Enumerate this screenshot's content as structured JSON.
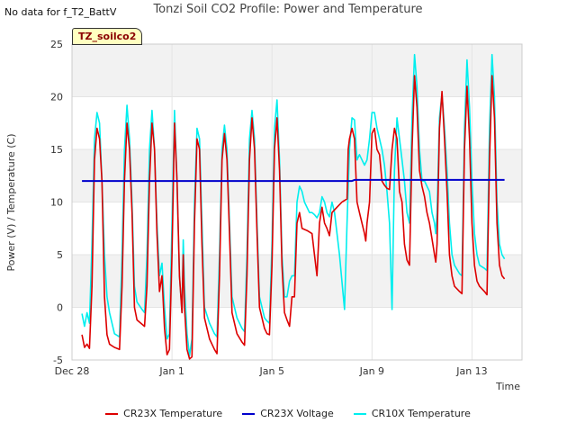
{
  "nodata_text": "No data for f_T2_BattV",
  "site_label": "TZ_soilco2",
  "colors": {
    "cr23x_temp": "#dd0000",
    "cr23x_voltage": "#0000cc",
    "cr10x_temp": "#00eeee",
    "band": "#f2f2f2",
    "grid": "#ffffff"
  },
  "chart_data": {
    "type": "line",
    "title": "Tonzi Soil CO2 Profile: Power and Temperature",
    "xlabel": "Time",
    "ylabel": "Power (V) / Temperature (C)",
    "xlim": [
      0,
      18
    ],
    "ylim": [
      -5,
      25
    ],
    "x_unit": "days since Dec 28",
    "xticks": [
      {
        "value": 0,
        "label": "Dec 28"
      },
      {
        "value": 4,
        "label": "Jan 1"
      },
      {
        "value": 8,
        "label": "Jan 5"
      },
      {
        "value": 12,
        "label": "Jan 9"
      },
      {
        "value": 16,
        "label": "Jan 13"
      }
    ],
    "yticks": [
      -5,
      0,
      5,
      10,
      15,
      20,
      25
    ],
    "series": [
      {
        "name": "CR23X Temperature",
        "key": "cr23x_temp",
        "points": [
          [
            0.4,
            -2.6
          ],
          [
            0.5,
            -3.8
          ],
          [
            0.6,
            -3.5
          ],
          [
            0.7,
            -3.9
          ],
          [
            0.8,
            2
          ],
          [
            0.9,
            14
          ],
          [
            1.0,
            17
          ],
          [
            1.1,
            16
          ],
          [
            1.2,
            12
          ],
          [
            1.3,
            1
          ],
          [
            1.4,
            -2.6
          ],
          [
            1.5,
            -3.5
          ],
          [
            1.7,
            -3.8
          ],
          [
            1.9,
            -4
          ],
          [
            2.0,
            2
          ],
          [
            2.1,
            12
          ],
          [
            2.2,
            17.5
          ],
          [
            2.3,
            15
          ],
          [
            2.4,
            9
          ],
          [
            2.5,
            0
          ],
          [
            2.6,
            -1.2
          ],
          [
            2.8,
            -1.6
          ],
          [
            2.9,
            -1.8
          ],
          [
            3.0,
            2
          ],
          [
            3.1,
            12
          ],
          [
            3.2,
            17.5
          ],
          [
            3.3,
            15
          ],
          [
            3.4,
            7
          ],
          [
            3.5,
            1.5
          ],
          [
            3.6,
            3
          ],
          [
            3.7,
            -2
          ],
          [
            3.8,
            -4.5
          ],
          [
            3.9,
            -4
          ],
          [
            4.0,
            5
          ],
          [
            4.1,
            17.5
          ],
          [
            4.2,
            12
          ],
          [
            4.3,
            3
          ],
          [
            4.4,
            -0.5
          ],
          [
            4.45,
            5
          ],
          [
            4.5,
            0
          ],
          [
            4.6,
            -4
          ],
          [
            4.7,
            -4.9
          ],
          [
            4.8,
            -4.7
          ],
          [
            4.9,
            8
          ],
          [
            5.0,
            16
          ],
          [
            5.1,
            15
          ],
          [
            5.2,
            6
          ],
          [
            5.3,
            -1
          ],
          [
            5.5,
            -3
          ],
          [
            5.7,
            -4
          ],
          [
            5.8,
            -4.4
          ],
          [
            5.9,
            3
          ],
          [
            6.0,
            14
          ],
          [
            6.1,
            16.5
          ],
          [
            6.2,
            14
          ],
          [
            6.3,
            7
          ],
          [
            6.4,
            -0.5
          ],
          [
            6.6,
            -2.5
          ],
          [
            6.8,
            -3.3
          ],
          [
            6.9,
            -3.6
          ],
          [
            7.0,
            3
          ],
          [
            7.1,
            14
          ],
          [
            7.2,
            18
          ],
          [
            7.3,
            15
          ],
          [
            7.4,
            7
          ],
          [
            7.5,
            0
          ],
          [
            7.7,
            -2
          ],
          [
            7.8,
            -2.5
          ],
          [
            7.9,
            -2.6
          ],
          [
            8.0,
            4
          ],
          [
            8.1,
            15
          ],
          [
            8.2,
            18
          ],
          [
            8.3,
            13
          ],
          [
            8.4,
            4
          ],
          [
            8.5,
            -0.5
          ],
          [
            8.6,
            -1.2
          ],
          [
            8.7,
            -1.8
          ],
          [
            8.8,
            1
          ],
          [
            8.9,
            1
          ],
          [
            9.0,
            8
          ],
          [
            9.1,
            9
          ],
          [
            9.2,
            7.5
          ],
          [
            9.4,
            7.3
          ],
          [
            9.6,
            7
          ],
          [
            9.7,
            5
          ],
          [
            9.8,
            3
          ],
          [
            9.9,
            8
          ],
          [
            10.0,
            9.5
          ],
          [
            10.1,
            8
          ],
          [
            10.2,
            7.5
          ],
          [
            10.3,
            6.8
          ],
          [
            10.4,
            9
          ],
          [
            10.6,
            9.5
          ],
          [
            10.8,
            10
          ],
          [
            11.0,
            10.3
          ],
          [
            11.05,
            15
          ],
          [
            11.1,
            16
          ],
          [
            11.2,
            17
          ],
          [
            11.3,
            16
          ],
          [
            11.4,
            10
          ],
          [
            11.5,
            9
          ],
          [
            11.6,
            8
          ],
          [
            11.7,
            7
          ],
          [
            11.75,
            6.3
          ],
          [
            11.8,
            8
          ],
          [
            11.9,
            10
          ],
          [
            12.0,
            16.5
          ],
          [
            12.1,
            17
          ],
          [
            12.2,
            15
          ],
          [
            12.3,
            14.5
          ],
          [
            12.4,
            12
          ],
          [
            12.5,
            11.6
          ],
          [
            12.6,
            11.3
          ],
          [
            12.7,
            11.2
          ],
          [
            12.8,
            15
          ],
          [
            12.9,
            17
          ],
          [
            13.0,
            16
          ],
          [
            13.1,
            11
          ],
          [
            13.2,
            10
          ],
          [
            13.3,
            6
          ],
          [
            13.4,
            4.5
          ],
          [
            13.5,
            4
          ],
          [
            13.6,
            15
          ],
          [
            13.7,
            22
          ],
          [
            13.8,
            19
          ],
          [
            13.9,
            13
          ],
          [
            14.0,
            11.5
          ],
          [
            14.1,
            10.5
          ],
          [
            14.2,
            9
          ],
          [
            14.3,
            8
          ],
          [
            14.4,
            6.5
          ],
          [
            14.5,
            5
          ],
          [
            14.55,
            4.3
          ],
          [
            14.6,
            6
          ],
          [
            14.7,
            17
          ],
          [
            14.8,
            20.5
          ],
          [
            14.9,
            16
          ],
          [
            15.0,
            11
          ],
          [
            15.1,
            5
          ],
          [
            15.2,
            3
          ],
          [
            15.3,
            2
          ],
          [
            15.5,
            1.5
          ],
          [
            15.6,
            1.3
          ],
          [
            15.7,
            15
          ],
          [
            15.8,
            21
          ],
          [
            15.9,
            16
          ],
          [
            16.0,
            8
          ],
          [
            16.1,
            4
          ],
          [
            16.2,
            2.5
          ],
          [
            16.3,
            2
          ],
          [
            16.5,
            1.5
          ],
          [
            16.6,
            1.2
          ],
          [
            16.7,
            14
          ],
          [
            16.8,
            22
          ],
          [
            16.9,
            18
          ],
          [
            17.0,
            8
          ],
          [
            17.1,
            4
          ],
          [
            17.2,
            3
          ],
          [
            17.3,
            2.7
          ]
        ]
      },
      {
        "name": "CR23X Voltage",
        "key": "cr23x_voltage",
        "points": [
          [
            0.4,
            12
          ],
          [
            11.0,
            12
          ],
          [
            11.2,
            12
          ],
          [
            11.3,
            12.1
          ],
          [
            17.3,
            12.1
          ]
        ]
      },
      {
        "name": "CR10X Temperature",
        "key": "cr10x_temp",
        "points": [
          [
            0.4,
            -0.6
          ],
          [
            0.5,
            -1.8
          ],
          [
            0.6,
            -0.5
          ],
          [
            0.7,
            -1.5
          ],
          [
            0.8,
            6
          ],
          [
            0.9,
            16
          ],
          [
            1.0,
            18.5
          ],
          [
            1.1,
            17.5
          ],
          [
            1.2,
            12
          ],
          [
            1.3,
            5
          ],
          [
            1.4,
            1
          ],
          [
            1.5,
            -0.5
          ],
          [
            1.7,
            -2.5
          ],
          [
            1.9,
            -2.8
          ],
          [
            2.0,
            5
          ],
          [
            2.1,
            15
          ],
          [
            2.2,
            19.2
          ],
          [
            2.3,
            16
          ],
          [
            2.4,
            10
          ],
          [
            2.5,
            2
          ],
          [
            2.6,
            0.5
          ],
          [
            2.8,
            -0.2
          ],
          [
            2.9,
            -0.5
          ],
          [
            3.0,
            5
          ],
          [
            3.1,
            15
          ],
          [
            3.2,
            18.7
          ],
          [
            3.3,
            15
          ],
          [
            3.4,
            8
          ],
          [
            3.5,
            3
          ],
          [
            3.6,
            4.2
          ],
          [
            3.7,
            0
          ],
          [
            3.8,
            -3
          ],
          [
            3.9,
            -2.5
          ],
          [
            4.0,
            8
          ],
          [
            4.1,
            18.7
          ],
          [
            4.2,
            12
          ],
          [
            4.3,
            3
          ],
          [
            4.4,
            -0.5
          ],
          [
            4.45,
            6.4
          ],
          [
            4.5,
            2
          ],
          [
            4.6,
            -2.5
          ],
          [
            4.7,
            -4.6
          ],
          [
            4.8,
            -3
          ],
          [
            4.9,
            10
          ],
          [
            5.0,
            17
          ],
          [
            5.1,
            16
          ],
          [
            5.2,
            8
          ],
          [
            5.3,
            0
          ],
          [
            5.5,
            -1.5
          ],
          [
            5.7,
            -2.5
          ],
          [
            5.8,
            -2.8
          ],
          [
            5.9,
            5
          ],
          [
            6.0,
            15
          ],
          [
            6.1,
            17.3
          ],
          [
            6.2,
            15
          ],
          [
            6.3,
            8
          ],
          [
            6.4,
            1
          ],
          [
            6.6,
            -1
          ],
          [
            6.8,
            -2
          ],
          [
            6.9,
            -2.3
          ],
          [
            7.0,
            5
          ],
          [
            7.1,
            16
          ],
          [
            7.2,
            18.7
          ],
          [
            7.3,
            16
          ],
          [
            7.4,
            8
          ],
          [
            7.5,
            1
          ],
          [
            7.7,
            -1
          ],
          [
            7.8,
            -1.3
          ],
          [
            7.9,
            -1.5
          ],
          [
            8.0,
            6
          ],
          [
            8.1,
            17
          ],
          [
            8.2,
            19.7
          ],
          [
            8.3,
            14
          ],
          [
            8.4,
            5
          ],
          [
            8.5,
            1
          ],
          [
            8.6,
            1
          ],
          [
            8.7,
            2.5
          ],
          [
            8.8,
            3
          ],
          [
            8.9,
            3
          ],
          [
            9.0,
            10
          ],
          [
            9.1,
            11.5
          ],
          [
            9.2,
            11
          ],
          [
            9.3,
            10
          ],
          [
            9.5,
            9
          ],
          [
            9.6,
            9
          ],
          [
            9.7,
            8.8
          ],
          [
            9.8,
            8.5
          ],
          [
            9.9,
            9
          ],
          [
            10.0,
            10.5
          ],
          [
            10.1,
            10
          ],
          [
            10.2,
            9
          ],
          [
            10.3,
            8.6
          ],
          [
            10.4,
            10
          ],
          [
            10.5,
            9
          ],
          [
            10.7,
            5
          ],
          [
            10.9,
            -0.2
          ],
          [
            11.0,
            8
          ],
          [
            11.1,
            15
          ],
          [
            11.2,
            18
          ],
          [
            11.3,
            17.8
          ],
          [
            11.4,
            14
          ],
          [
            11.5,
            14.5
          ],
          [
            11.6,
            14
          ],
          [
            11.7,
            13.5
          ],
          [
            11.8,
            14
          ],
          [
            11.9,
            16
          ],
          [
            12.0,
            18.5
          ],
          [
            12.1,
            18.5
          ],
          [
            12.2,
            17
          ],
          [
            12.3,
            16
          ],
          [
            12.4,
            15
          ],
          [
            12.5,
            13.5
          ],
          [
            12.6,
            11
          ],
          [
            12.7,
            8
          ],
          [
            12.8,
            -0.2
          ],
          [
            12.9,
            13
          ],
          [
            13.0,
            18
          ],
          [
            13.1,
            16
          ],
          [
            13.2,
            14
          ],
          [
            13.3,
            12
          ],
          [
            13.4,
            9
          ],
          [
            13.5,
            8
          ],
          [
            13.6,
            18
          ],
          [
            13.7,
            24
          ],
          [
            13.8,
            21
          ],
          [
            13.9,
            15
          ],
          [
            14.0,
            12
          ],
          [
            14.1,
            12
          ],
          [
            14.2,
            11.5
          ],
          [
            14.3,
            11
          ],
          [
            14.4,
            9
          ],
          [
            14.5,
            8
          ],
          [
            14.55,
            7
          ],
          [
            14.6,
            9
          ],
          [
            14.7,
            18
          ],
          [
            14.8,
            20.3
          ],
          [
            14.9,
            17
          ],
          [
            15.0,
            13
          ],
          [
            15.1,
            8
          ],
          [
            15.2,
            5
          ],
          [
            15.3,
            4
          ],
          [
            15.5,
            3.2
          ],
          [
            15.6,
            3
          ],
          [
            15.7,
            17
          ],
          [
            15.8,
            23.5
          ],
          [
            15.9,
            19
          ],
          [
            16.0,
            12
          ],
          [
            16.1,
            7
          ],
          [
            16.2,
            5
          ],
          [
            16.3,
            4
          ],
          [
            16.5,
            3.7
          ],
          [
            16.6,
            3.5
          ],
          [
            16.7,
            17
          ],
          [
            16.8,
            24
          ],
          [
            16.9,
            20
          ],
          [
            17.0,
            10
          ],
          [
            17.1,
            6
          ],
          [
            17.2,
            5
          ],
          [
            17.3,
            4.6
          ]
        ]
      }
    ]
  }
}
